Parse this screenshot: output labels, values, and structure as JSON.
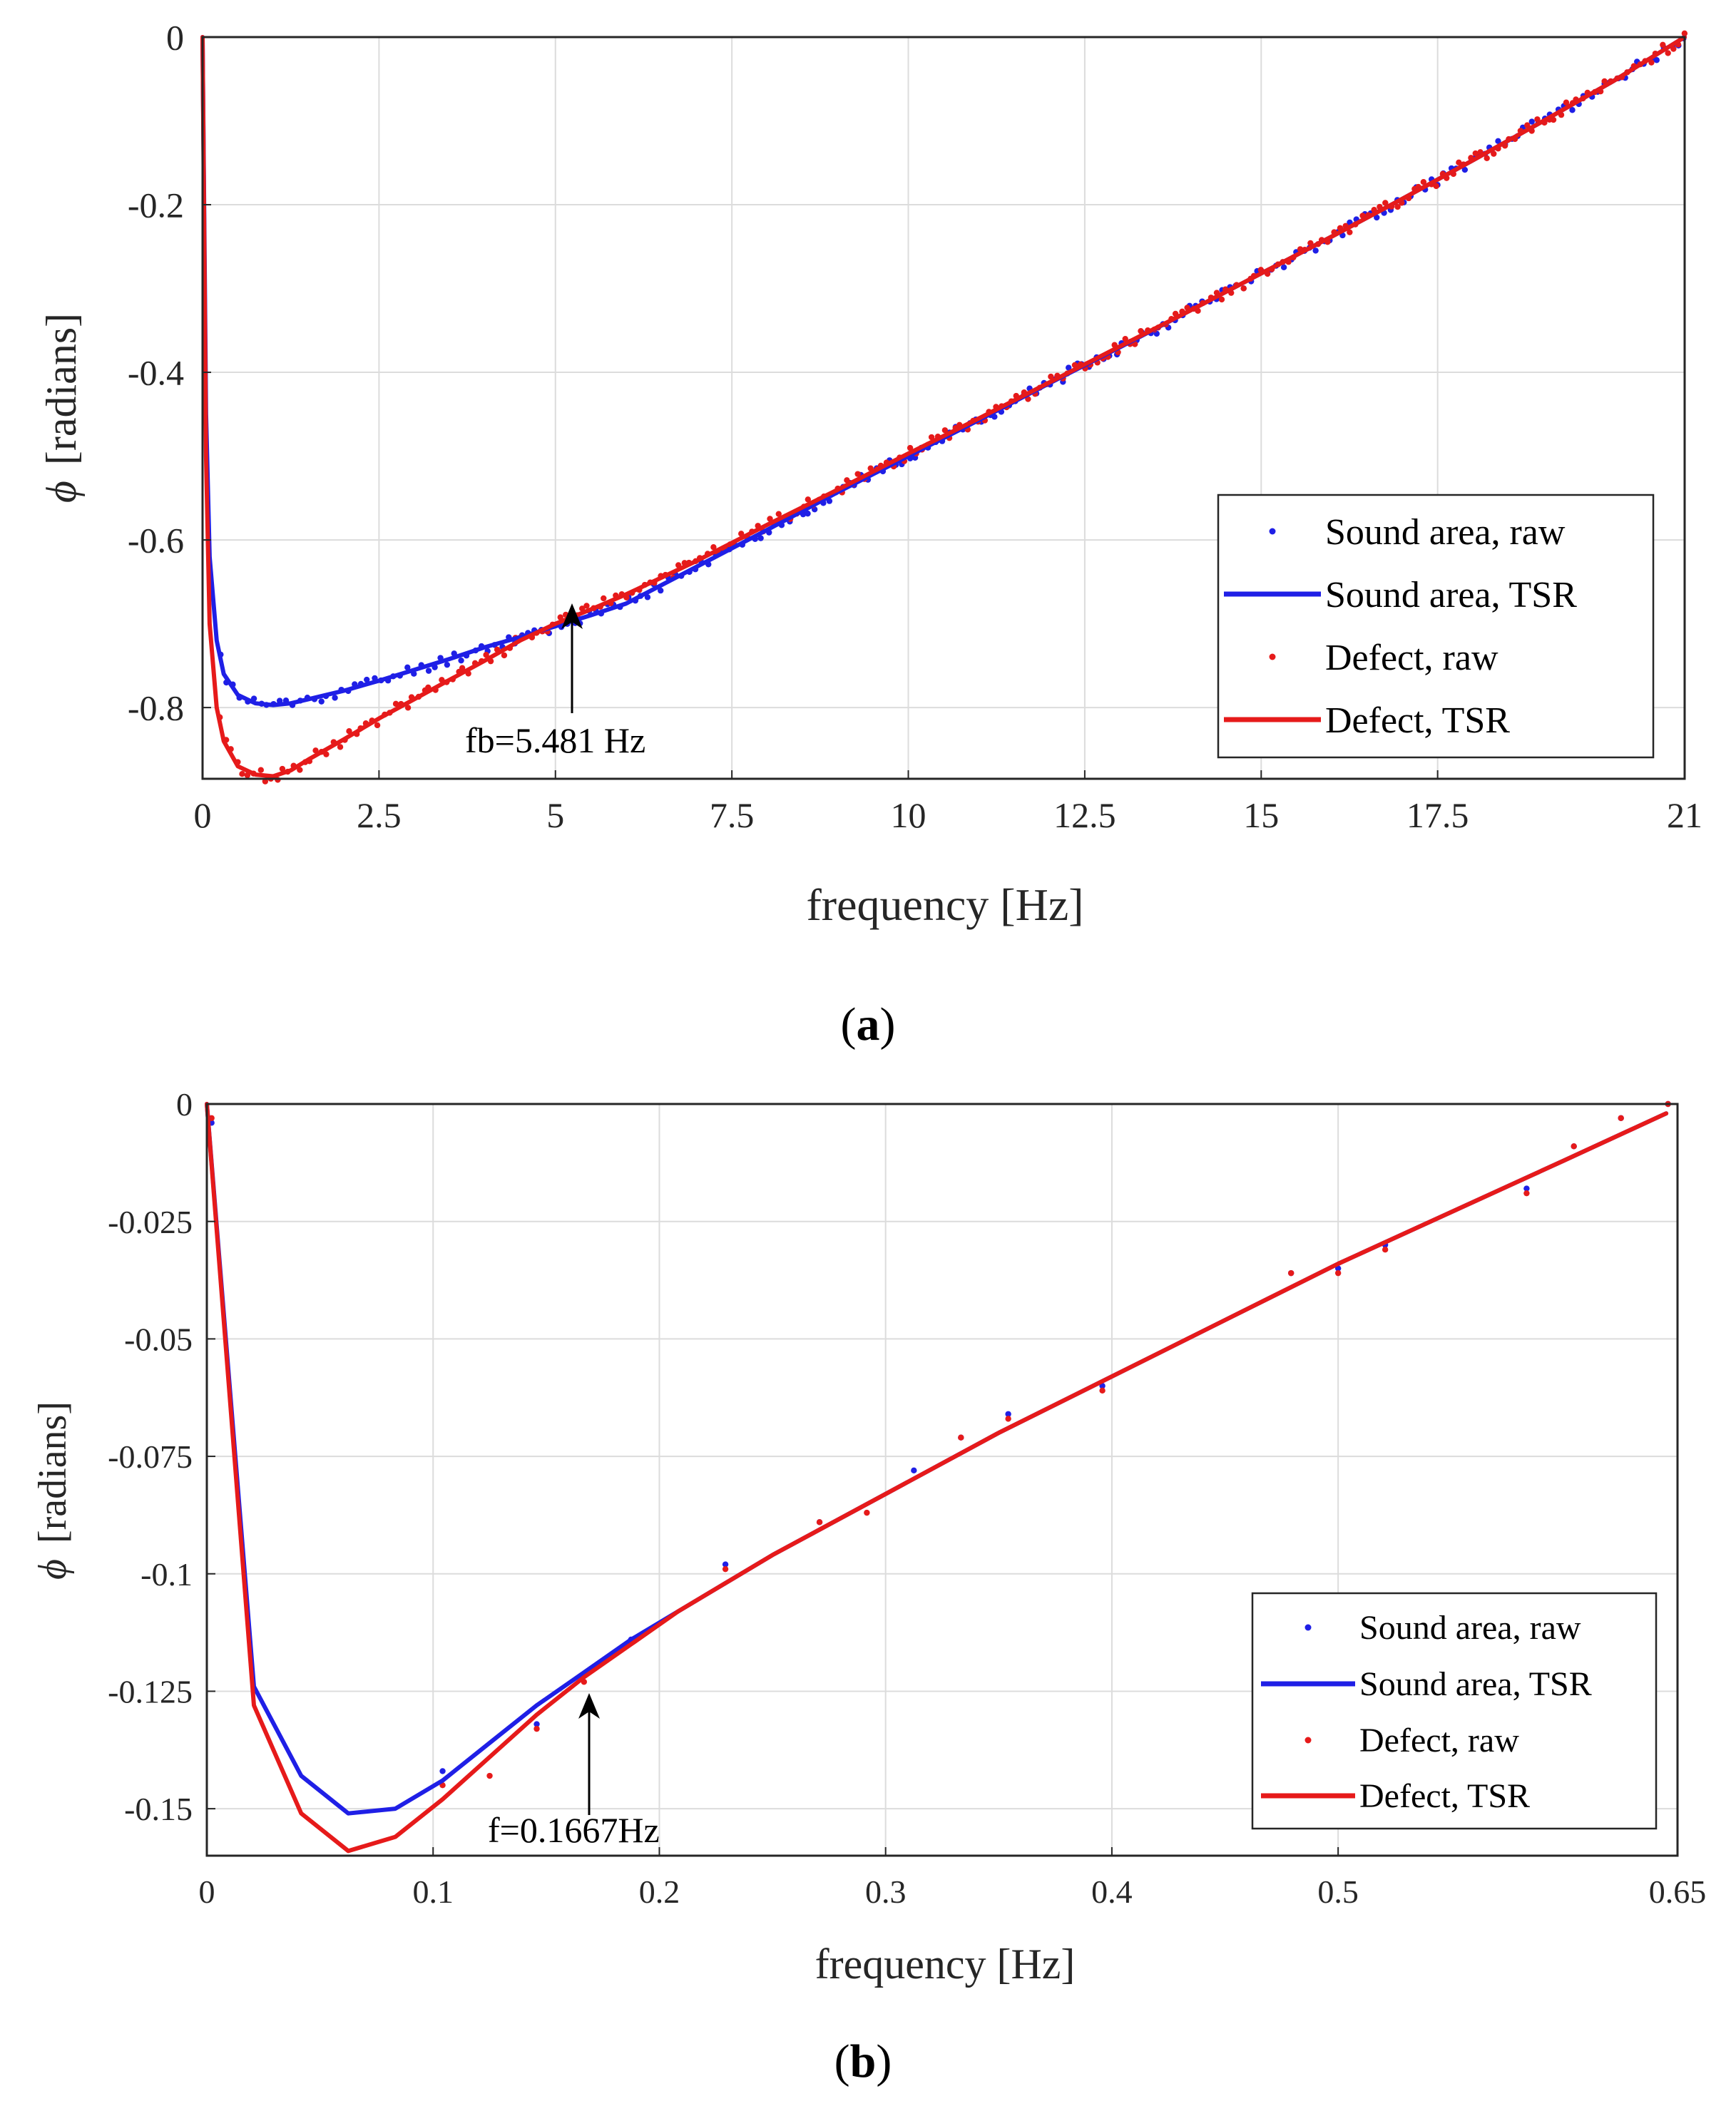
{
  "chart_data": [
    {
      "type": "scatter+line",
      "panel_label": "a",
      "xlabel": "frequency [Hz]",
      "ylabel_symbol": "ϕ",
      "ylabel": "[radians]",
      "xlim": [
        0,
        21
      ],
      "ylim": [
        -0.885,
        0
      ],
      "xticks": [
        0,
        2.5,
        5,
        7.5,
        10,
        12.5,
        15,
        17.5,
        21
      ],
      "xtick_labels": [
        "0",
        "2.5",
        "5",
        "7.5",
        "10",
        "12.5",
        "15",
        "17.5",
        "21"
      ],
      "yticks": [
        0,
        -0.2,
        -0.4,
        -0.6,
        -0.8
      ],
      "ytick_labels": [
        "0",
        "-0.2",
        "-0.4",
        "-0.6",
        "-0.8"
      ],
      "grid": true,
      "legend_position": "bottom-right",
      "legend": [
        "Sound area, raw",
        "Sound area, TSR",
        "Defect, raw",
        "Defect, TSR"
      ],
      "annotation": {
        "text": "fb=5.481 Hz",
        "x": 5.2,
        "y": -0.69
      },
      "series": [
        {
          "name": "Sound area, TSR",
          "style": "line",
          "color": "#1f1fe6",
          "x": [
            0,
            0.05,
            0.1,
            0.2,
            0.3,
            0.5,
            0.75,
            1.0,
            1.25,
            1.5,
            2.0,
            2.5,
            3.0,
            3.5,
            4.0,
            4.5,
            5.0,
            5.5,
            6.0,
            7.0,
            8.0,
            9.0,
            10.0,
            11.0,
            12.0,
            13.0,
            14.0,
            15.0,
            16.0,
            17.0,
            18.0,
            19.0,
            20.0,
            21.0
          ],
          "y": [
            0,
            -0.45,
            -0.62,
            -0.72,
            -0.76,
            -0.785,
            -0.795,
            -0.797,
            -0.795,
            -0.79,
            -0.78,
            -0.768,
            -0.755,
            -0.742,
            -0.728,
            -0.716,
            -0.703,
            -0.69,
            -0.676,
            -0.632,
            -0.588,
            -0.543,
            -0.5,
            -0.457,
            -0.413,
            -0.37,
            -0.326,
            -0.282,
            -0.238,
            -0.193,
            -0.147,
            -0.1,
            -0.052,
            0
          ]
        },
        {
          "name": "Defect, TSR",
          "style": "line",
          "color": "#e61a1a",
          "x": [
            0,
            0.05,
            0.1,
            0.2,
            0.3,
            0.5,
            0.75,
            1.0,
            1.25,
            1.5,
            2.0,
            2.5,
            3.0,
            3.5,
            4.0,
            4.5,
            5.0,
            5.5,
            6.0,
            7.0,
            8.0,
            9.0,
            10.0,
            11.0,
            12.0,
            13.0,
            14.0,
            15.0,
            16.0,
            17.0,
            18.0,
            19.0,
            20.0,
            21.0
          ],
          "y": [
            0,
            -0.5,
            -0.7,
            -0.8,
            -0.84,
            -0.87,
            -0.88,
            -0.882,
            -0.875,
            -0.862,
            -0.838,
            -0.813,
            -0.79,
            -0.767,
            -0.744,
            -0.72,
            -0.7,
            -0.683,
            -0.665,
            -0.625,
            -0.582,
            -0.54,
            -0.497,
            -0.455,
            -0.412,
            -0.369,
            -0.326,
            -0.282,
            -0.238,
            -0.193,
            -0.147,
            -0.1,
            -0.052,
            0
          ]
        },
        {
          "name": "Sound area, raw",
          "style": "dots",
          "color": "#1f1fe6",
          "noise": 0.007,
          "seed": 11,
          "x_range": [
            0.25,
            21.0
          ],
          "count": 220
        },
        {
          "name": "Defect, raw",
          "style": "dots",
          "color": "#e61a1a",
          "noise": 0.007,
          "seed": 29,
          "x_range": [
            0.25,
            21.0
          ],
          "count": 260
        }
      ]
    },
    {
      "type": "scatter+line",
      "panel_label": "b",
      "xlabel": "frequency [Hz]",
      "ylabel_symbol": "ϕ",
      "ylabel": "[radians]",
      "xlim": [
        0,
        0.65
      ],
      "ylim": [
        -0.16,
        0
      ],
      "xticks": [
        0,
        0.1,
        0.2,
        0.3,
        0.4,
        0.5,
        0.65
      ],
      "xtick_labels": [
        "0",
        "0.1",
        "0.2",
        "0.3",
        "0.4",
        "0.5",
        "0.65"
      ],
      "yticks": [
        0,
        -0.025,
        -0.05,
        -0.075,
        -0.1,
        -0.125,
        -0.15
      ],
      "ytick_labels": [
        "0",
        "-0.025",
        "-0.05",
        "-0.075",
        "-0.1",
        "-0.125",
        "-0.15"
      ],
      "grid": true,
      "legend_position": "bottom-right",
      "legend": [
        "Sound area, raw",
        "Sound area, TSR",
        "Defect, raw",
        "Defect, TSR"
      ],
      "annotation": {
        "text": "f=0.1667Hz",
        "x": 0.1667,
        "y": -0.1235
      },
      "series": [
        {
          "name": "Sound area, TSR",
          "style": "line",
          "color": "#1f1fe6",
          "x": [
            0,
            0.0208,
            0.0417,
            0.0625,
            0.0833,
            0.1042,
            0.125,
            0.1458,
            0.1667,
            0.1875,
            0.2083,
            0.25,
            0.3,
            0.35,
            0.4,
            0.45,
            0.5,
            0.55,
            0.6,
            0.645
          ],
          "y": [
            0,
            -0.124,
            -0.143,
            -0.151,
            -0.15,
            -0.144,
            -0.136,
            -0.128,
            -0.121,
            -0.114,
            -0.108,
            -0.096,
            -0.083,
            -0.07,
            -0.058,
            -0.046,
            -0.034,
            -0.023,
            -0.012,
            -0.002
          ]
        },
        {
          "name": "Defect, TSR",
          "style": "line",
          "color": "#e61a1a",
          "x": [
            0,
            0.0208,
            0.0417,
            0.0625,
            0.0833,
            0.1042,
            0.125,
            0.1458,
            0.1667,
            0.1875,
            0.2083,
            0.25,
            0.3,
            0.35,
            0.4,
            0.45,
            0.5,
            0.55,
            0.6,
            0.645
          ],
          "y": [
            0,
            -0.128,
            -0.151,
            -0.159,
            -0.156,
            -0.148,
            -0.139,
            -0.13,
            -0.122,
            -0.115,
            -0.108,
            -0.096,
            -0.083,
            -0.07,
            -0.058,
            -0.046,
            -0.034,
            -0.023,
            -0.012,
            -0.002
          ]
        },
        {
          "name": "Sound area, raw",
          "style": "dots",
          "color": "#1f1fe6",
          "x": [
            0.0021,
            0.1042,
            0.1458,
            0.1875,
            0.2292,
            0.2708,
            0.3125,
            0.3333,
            0.3542,
            0.3958,
            0.4792,
            0.5,
            0.5208,
            0.5833,
            0.6042,
            0.625,
            0.6458
          ],
          "y": [
            -0.004,
            -0.142,
            -0.132,
            -0.114,
            -0.098,
            -0.089,
            -0.078,
            -0.071,
            -0.066,
            -0.06,
            -0.036,
            -0.035,
            -0.03,
            -0.018,
            -0.009,
            -0.003,
            0
          ]
        },
        {
          "name": "Defect, raw",
          "style": "dots",
          "color": "#e61a1a",
          "x": [
            0.0021,
            0.1042,
            0.125,
            0.1458,
            0.1667,
            0.2292,
            0.2708,
            0.2917,
            0.3333,
            0.3542,
            0.3958,
            0.4792,
            0.5,
            0.5208,
            0.5833,
            0.6042,
            0.625,
            0.6458
          ],
          "y": [
            -0.003,
            -0.145,
            -0.143,
            -0.133,
            -0.123,
            -0.099,
            -0.089,
            -0.087,
            -0.071,
            -0.067,
            -0.061,
            -0.036,
            -0.036,
            -0.031,
            -0.019,
            -0.009,
            -0.003,
            0
          ]
        }
      ]
    }
  ]
}
